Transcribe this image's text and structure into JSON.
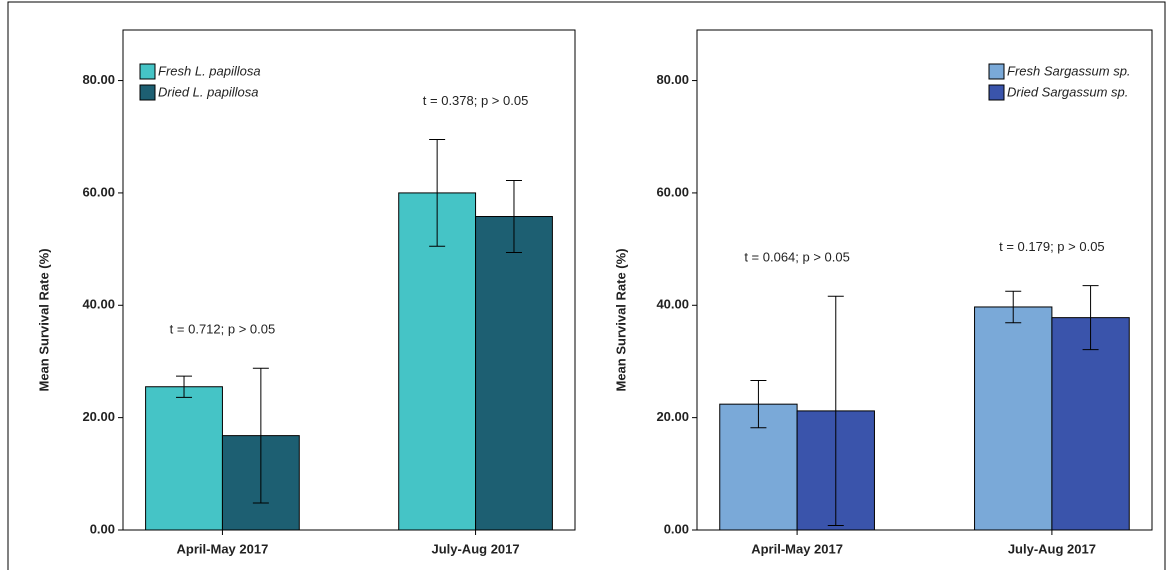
{
  "chart_data": [
    {
      "type": "bar",
      "y_label": "Mean Survival Rate (%)",
      "categories": [
        "April-May 2017",
        "July-Aug 2017"
      ],
      "series": [
        {
          "name": "Fresh L. papillosa",
          "color": "#45c4c6",
          "values": [
            25.5,
            60.0
          ],
          "errors": [
            1.9,
            9.5
          ]
        },
        {
          "name": "Dried L. papillosa",
          "color": "#1d5f72",
          "values": [
            16.8,
            55.8
          ],
          "errors": [
            12.0,
            6.4
          ]
        }
      ],
      "annotations": [
        "t = 0.712; p > 0.05",
        "t = 0.378; p > 0.05"
      ],
      "ylim": [
        0,
        89
      ],
      "yticks": [
        {
          "value": 0,
          "label": "0.00"
        },
        {
          "value": 20,
          "label": "20.00"
        },
        {
          "value": 40,
          "label": "40.00"
        },
        {
          "value": 60,
          "label": "60.00"
        },
        {
          "value": 80,
          "label": "80.00"
        }
      ],
      "legend": "upper left"
    },
    {
      "type": "bar",
      "y_label": "Mean Survival Rate (%)",
      "categories": [
        "April-May 2017",
        "July-Aug 2017"
      ],
      "series": [
        {
          "name": "Fresh Sargassum sp.",
          "color": "#7aa9d8",
          "values": [
            22.4,
            39.7
          ],
          "errors": [
            4.2,
            2.8
          ]
        },
        {
          "name": "Dried Sargassum sp.",
          "color": "#3a54ab",
          "values": [
            21.2,
            37.8
          ],
          "errors": [
            20.4,
            5.7
          ]
        }
      ],
      "annotations": [
        "t = 0.064; p > 0.05",
        "t = 0.179; p > 0.05"
      ],
      "ylim": [
        0,
        89
      ],
      "yticks": [
        {
          "value": 0,
          "label": "0.00"
        },
        {
          "value": 20,
          "label": "20.00"
        },
        {
          "value": 40,
          "label": "40.00"
        },
        {
          "value": 60,
          "label": "60.00"
        },
        {
          "value": 80,
          "label": "80.00"
        }
      ],
      "legend": "upper right"
    }
  ]
}
